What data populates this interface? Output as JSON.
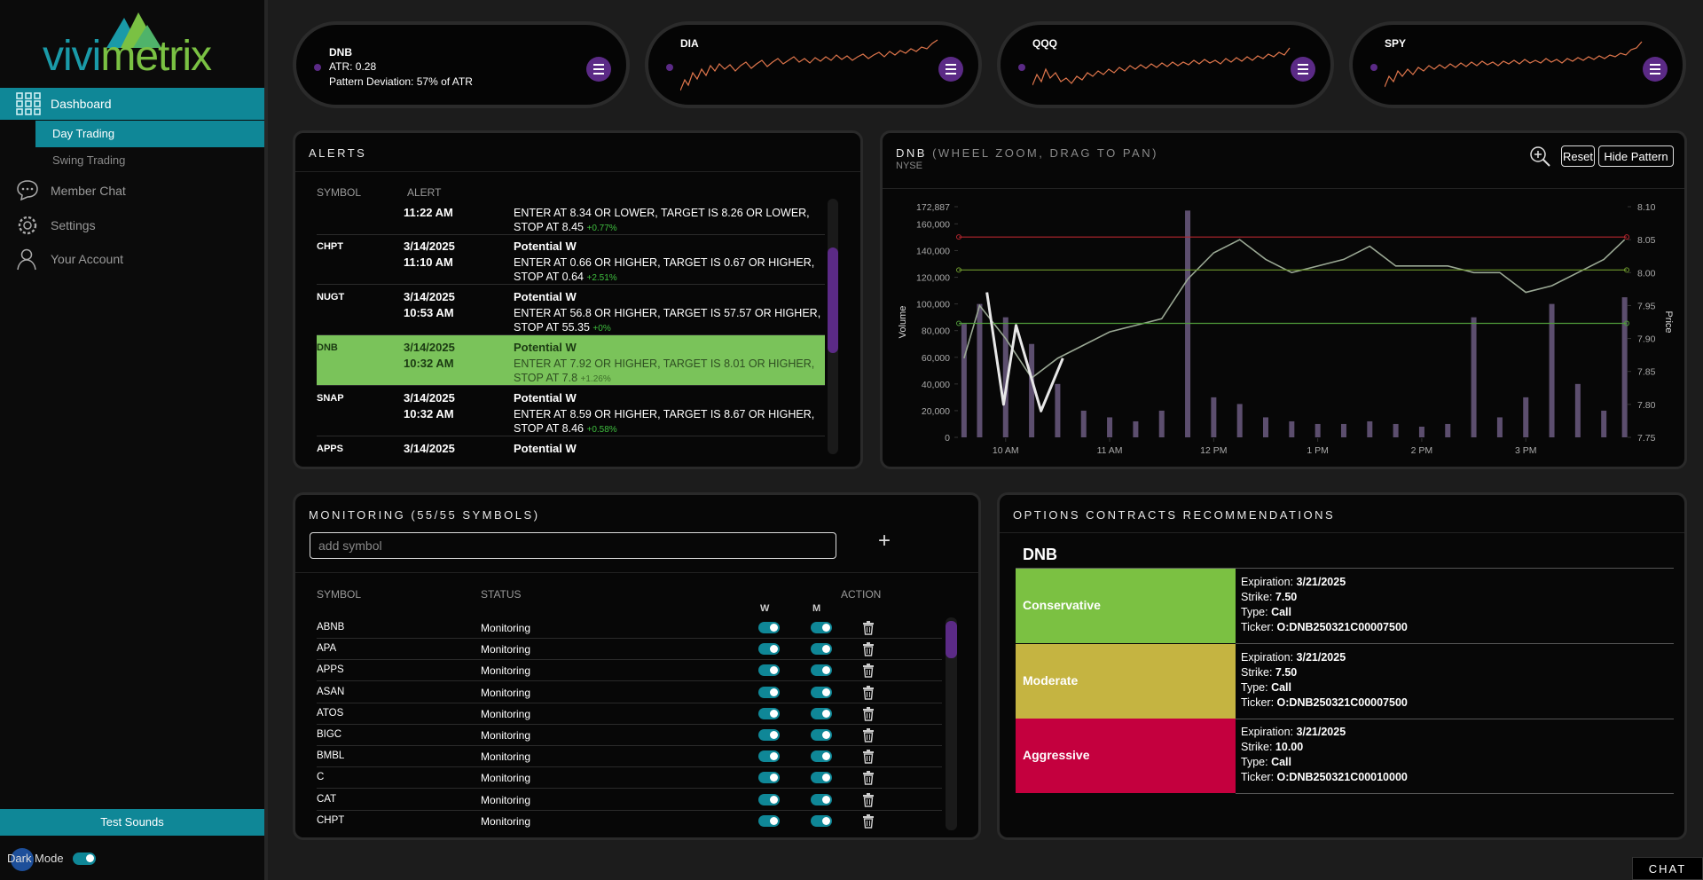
{
  "sidebar": {
    "logo": [
      "vivi",
      "metrix"
    ],
    "nav": [
      "Dashboard",
      "Day Trading",
      "Swing Trading",
      "Member Chat",
      "Settings",
      "Your Account"
    ],
    "test_sounds": "Test Sounds",
    "dark_mode": "Dark Mode",
    "dark_mode_on": true
  },
  "tickers": [
    {
      "symbol": "DNB",
      "atr": "ATR: 0.28",
      "deviation": "Pattern Deviation: 57% of ATR"
    },
    {
      "symbol": "DIA"
    },
    {
      "symbol": "QQQ"
    },
    {
      "symbol": "SPY"
    }
  ],
  "alerts": {
    "title": "ALERTS",
    "columns": [
      "SYMBOL",
      "ALERT"
    ],
    "rows": [
      {
        "time": "11:22 AM",
        "text": "ENTER AT 8.34 OR LOWER, TARGET IS 8.26 OR LOWER, STOP AT 8.45",
        "change": "+0.77%"
      },
      {
        "symbol": "CHPT",
        "date": "3/14/2025",
        "time": "11:10 AM",
        "title": "Potential W",
        "text": "ENTER AT 0.66 OR HIGHER, TARGET IS 0.67 OR HIGHER, STOP AT 0.64",
        "change": "+2.51%"
      },
      {
        "symbol": "NUGT",
        "date": "3/14/2025",
        "time": "10:53 AM",
        "title": "Potential W",
        "text": "ENTER AT 56.8 OR HIGHER, TARGET IS 57.57 OR HIGHER, STOP AT 55.35",
        "change": "+0%"
      },
      {
        "symbol": "DNB",
        "date": "3/14/2025",
        "time": "10:32 AM",
        "title": "Potential W",
        "text": "ENTER AT 7.92 OR HIGHER, TARGET IS 8.01 OR HIGHER, STOP AT 7.8",
        "change": "+1.26%",
        "highlight": true
      },
      {
        "symbol": "SNAP",
        "date": "3/14/2025",
        "time": "10:32 AM",
        "title": "Potential W",
        "text": "ENTER AT 8.59 OR HIGHER, TARGET IS 8.67 OR HIGHER, STOP AT 8.46",
        "change": "+0.58%"
      },
      {
        "symbol": "APPS",
        "date": "3/14/2025",
        "title": "Potential W"
      }
    ]
  },
  "chart_data": {
    "type": "line",
    "title": "DNB",
    "subtitle": "(WHEEL ZOOM, DRAG TO PAN)",
    "exchange": "NYSE",
    "buttons": [
      "Reset",
      "Hide Pattern"
    ],
    "ylabel": "Volume",
    "y2label": "Price",
    "grid": false,
    "x": [
      9.6,
      9.75,
      10,
      10.25,
      10.5,
      10.75,
      11,
      11.25,
      11.5,
      11.75,
      12,
      12.25,
      12.5,
      12.75,
      13,
      13.25,
      13.5,
      13.75,
      14,
      14.25,
      14.5,
      14.75,
      15,
      15.25,
      15.5,
      15.75,
      15.95
    ],
    "xlim": [
      9.55,
      15.97
    ],
    "xticks": [
      {
        "value": 10,
        "label": "10 AM"
      },
      {
        "value": 11,
        "label": "11 AM"
      },
      {
        "value": 12,
        "label": "12 PM"
      },
      {
        "value": 13,
        "label": "1 PM"
      },
      {
        "value": 14,
        "label": "2 PM"
      },
      {
        "value": 15,
        "label": "3 PM"
      }
    ],
    "ylim": [
      0,
      172887
    ],
    "yticks": [
      0,
      {
        "value": 20000,
        "label": "20,000"
      },
      {
        "value": 40000,
        "label": "40,000"
      },
      {
        "value": 60000,
        "label": "60,000"
      },
      {
        "value": 80000,
        "label": "80,000"
      },
      {
        "value": 100000,
        "label": "100,000"
      },
      {
        "value": 120000,
        "label": "120,000"
      },
      {
        "value": 140000,
        "label": "140,000"
      },
      {
        "value": 160000,
        "label": "160,000"
      },
      {
        "value": 172887,
        "label": "172,887"
      }
    ],
    "y2lim": [
      7.75,
      8.1
    ],
    "y2ticks": [
      7.75,
      {
        "value": 7.8,
        "label": "7.80"
      },
      7.85,
      {
        "value": 7.9,
        "label": "7.90"
      },
      7.95,
      {
        "value": 8,
        "label": "8.00"
      },
      8.05,
      {
        "value": 8.1,
        "label": "8.10"
      }
    ],
    "series": [
      {
        "type": "bar",
        "color": "#6b5a80",
        "values": [
          85000,
          100000,
          90000,
          70000,
          40000,
          20000,
          15000,
          12000,
          20000,
          170000,
          30000,
          25000,
          15000,
          12000,
          10000,
          10000,
          12000,
          10000,
          8000,
          10000,
          90000,
          15000,
          30000,
          100000,
          40000,
          20000,
          105000
        ]
      },
      {
        "type": "line",
        "axis": "y2",
        "color": "#9aa894",
        "values": [
          7.87,
          7.95,
          7.9,
          7.84,
          7.87,
          7.89,
          7.91,
          7.92,
          7.93,
          7.99,
          8.03,
          8.05,
          8.02,
          8.0,
          8.01,
          8.02,
          8.04,
          8.01,
          8.01,
          8.01,
          8.0,
          8.0,
          7.97,
          7.98,
          8.0,
          8.02,
          8.05
        ]
      }
    ],
    "pattern": {
      "axis": "y2",
      "color": "#e8e8e8",
      "x": [
        9.82,
        9.98,
        10.1,
        10.34,
        10.55
      ],
      "values": [
        7.97,
        7.8,
        7.92,
        7.79,
        7.87
      ]
    },
    "levels": [
      {
        "value": 8.054,
        "color": "#b3262e"
      },
      {
        "value": 8.004,
        "color": "#6f9a2e"
      },
      {
        "value": 7.923,
        "color": "#4f9a3a"
      }
    ]
  },
  "monitoring": {
    "title": "MONITORING (55/55 SYMBOLS)",
    "placeholder": "add symbol",
    "add": "+",
    "columns": [
      "SYMBOL",
      "STATUS",
      "ACTION"
    ],
    "toggles": [
      "W",
      "M"
    ],
    "rows": [
      {
        "symbol": "ABNB",
        "status": "Monitoring",
        "w": true,
        "m": true
      },
      {
        "symbol": "APA",
        "status": "Monitoring",
        "w": true,
        "m": true
      },
      {
        "symbol": "APPS",
        "status": "Monitoring",
        "w": true,
        "m": true
      },
      {
        "symbol": "ASAN",
        "status": "Monitoring",
        "w": true,
        "m": true
      },
      {
        "symbol": "ATOS",
        "status": "Monitoring",
        "w": true,
        "m": true
      },
      {
        "symbol": "BIGC",
        "status": "Monitoring",
        "w": true,
        "m": true
      },
      {
        "symbol": "BMBL",
        "status": "Monitoring",
        "w": true,
        "m": true
      },
      {
        "symbol": "C",
        "status": "Monitoring",
        "w": true,
        "m": true
      },
      {
        "symbol": "CAT",
        "status": "Monitoring",
        "w": true,
        "m": true
      },
      {
        "symbol": "CHPT",
        "status": "Monitoring",
        "w": true,
        "m": true
      }
    ]
  },
  "options": {
    "title": "OPTIONS CONTRACTS RECOMMENDATIONS",
    "symbol": "DNB",
    "fields": [
      "Expiration:",
      "Strike:",
      "Type:",
      "Ticker:"
    ],
    "cards": [
      {
        "label": "Conservative",
        "color": "#7bc142",
        "details": [
          "3/21/2025",
          "7.50",
          "Call",
          "O:DNB250321C00007500"
        ]
      },
      {
        "label": "Moderate",
        "color": "#c5b441",
        "details": [
          "3/21/2025",
          "7.50",
          "Call",
          "O:DNB250321C00007500"
        ]
      },
      {
        "label": "Aggressive",
        "color": "#c4003e",
        "details": [
          "3/21/2025",
          "10.00",
          "Call",
          "O:DNB250321C00010000"
        ]
      }
    ]
  },
  "chat": "CHAT"
}
